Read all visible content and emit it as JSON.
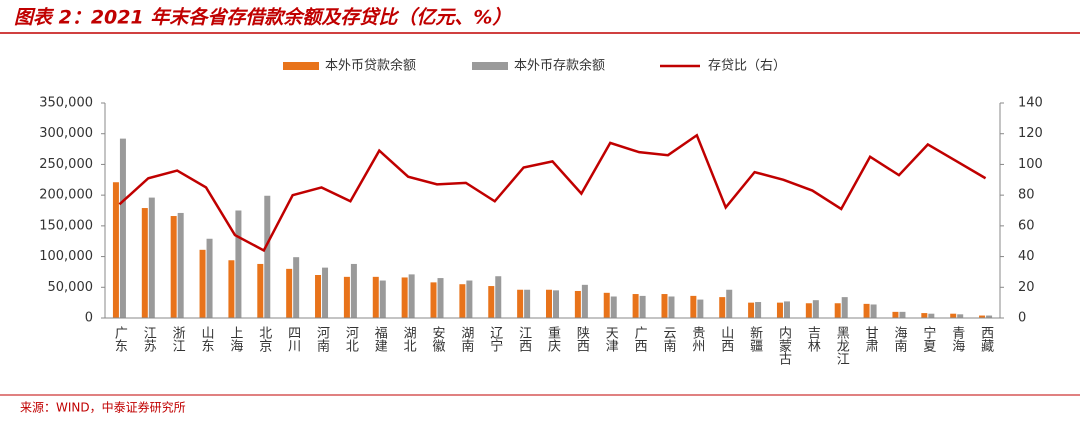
{
  "chart_data": {
    "type": "bar",
    "title": "图表 2：2021 年末各省存借款余额及存贷比（亿元、%）",
    "source": "来源：WIND，中泰证券研究所",
    "categories": [
      "广东",
      "江苏",
      "浙江",
      "山东",
      "上海",
      "北京",
      "四川",
      "河南",
      "河北",
      "福建",
      "湖北",
      "安徽",
      "湖南",
      "辽宁",
      "江西",
      "重庆",
      "陕西",
      "天津",
      "广西",
      "云南",
      "贵州",
      "山西",
      "新疆",
      "内蒙古",
      "吉林",
      "黑龙江",
      "甘肃",
      "海南",
      "宁夏",
      "青海",
      "西藏"
    ],
    "series": [
      {
        "name": "本外币贷款余额",
        "type": "bar",
        "color": "#e8731a",
        "values": [
          221000,
          179000,
          166000,
          111000,
          94000,
          88000,
          80000,
          70000,
          67000,
          67000,
          66000,
          58000,
          55000,
          52000,
          46000,
          46000,
          44000,
          41000,
          39000,
          39000,
          36000,
          34000,
          25000,
          25000,
          24000,
          24000,
          23000,
          10000,
          8000,
          7000,
          4000
        ]
      },
      {
        "name": "本外币存款余额",
        "type": "bar",
        "color": "#9a9a9a",
        "values": [
          292000,
          196000,
          171000,
          129000,
          175000,
          199000,
          99000,
          82000,
          88000,
          61000,
          71000,
          65000,
          61000,
          68000,
          46000,
          45000,
          54000,
          35000,
          36000,
          35000,
          30000,
          46000,
          26000,
          27000,
          29000,
          34000,
          22000,
          10000,
          7000,
          6000,
          4000
        ]
      },
      {
        "name": "存贷比（右）",
        "type": "line",
        "axis": "y2",
        "color": "#c00000",
        "values": [
          74,
          91,
          96,
          85,
          54,
          44,
          80,
          85,
          76,
          109,
          92,
          87,
          88,
          76,
          98,
          102,
          81,
          114,
          108,
          106,
          119,
          72,
          95,
          90,
          83,
          71,
          105,
          93,
          113,
          102,
          91
        ]
      }
    ],
    "ylim": [
      0,
      350000
    ],
    "yticks": [
      0,
      {
        "value": 50000,
        "label": "50,000"
      },
      {
        "value": 100000,
        "label": "100,000"
      },
      {
        "value": 150000,
        "label": "150,000"
      },
      {
        "value": 200000,
        "label": "200,000"
      },
      {
        "value": 250000,
        "label": "250,000"
      },
      {
        "value": 300000,
        "label": "300,000"
      },
      {
        "value": 350000,
        "label": "350,000"
      }
    ],
    "y2lim": [
      0,
      140
    ],
    "y2ticks": [
      0,
      20,
      40,
      60,
      80,
      100,
      120,
      140
    ]
  }
}
